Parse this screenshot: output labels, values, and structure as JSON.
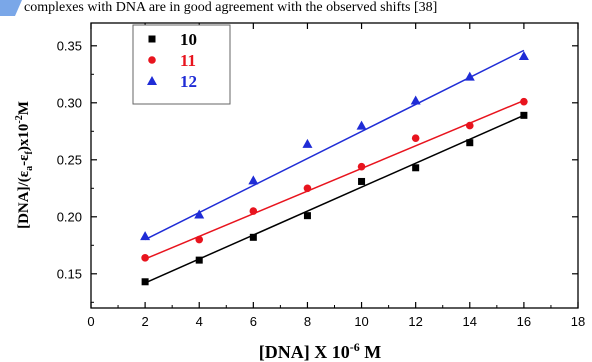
{
  "top_snippet": "complexes with DNA are in good agreement with the observed shifts [38]",
  "colors": {
    "series_10": "#000000",
    "series_11": "#e8141e",
    "series_12": "#1f2cd6",
    "snippet_accent": "#7aa7e8"
  },
  "chart_data": {
    "type": "scatter",
    "xlabel_main": "[DNA] X 10",
    "xlabel_sup": "-6",
    "xlabel_unit": " M",
    "ylabel_main": "[DNA]/(ε",
    "ylabel_sub_a": "a",
    "ylabel_mid": "-ε",
    "ylabel_sub_f": "f",
    "ylabel_end": ")x10",
    "ylabel_sup": "-2",
    "ylabel_unit": "M",
    "xlim": [
      0,
      18
    ],
    "ylim": [
      0.12,
      0.37
    ],
    "xticks": [
      "0",
      "2",
      "4",
      "6",
      "8",
      "10",
      "12",
      "14",
      "16",
      "18"
    ],
    "yticks": [
      "0.15",
      "0.20",
      "0.25",
      "0.30",
      "0.35"
    ],
    "legend_position": "top-left",
    "series": [
      {
        "name": "10",
        "marker": "square",
        "x": [
          2,
          4,
          6,
          8,
          10,
          12,
          14,
          16
        ],
        "y": [
          0.143,
          0.162,
          0.182,
          0.201,
          0.231,
          0.243,
          0.265,
          0.289
        ],
        "fit": [
          [
            2,
            0.142
          ],
          [
            16,
            0.289
          ]
        ]
      },
      {
        "name": "11",
        "marker": "circle",
        "x": [
          2,
          4,
          6,
          8,
          10,
          12,
          14,
          16
        ],
        "y": [
          0.164,
          0.18,
          0.205,
          0.225,
          0.244,
          0.269,
          0.28,
          0.301
        ],
        "fit": [
          [
            2,
            0.163
          ],
          [
            16,
            0.302
          ]
        ]
      },
      {
        "name": "12",
        "marker": "triangle",
        "x": [
          2,
          4,
          6,
          8,
          10,
          12,
          14,
          16
        ],
        "y": [
          0.183,
          0.202,
          0.232,
          0.264,
          0.28,
          0.302,
          0.323,
          0.341
        ],
        "fit": [
          [
            2,
            0.18
          ],
          [
            16,
            0.346
          ]
        ]
      }
    ]
  }
}
